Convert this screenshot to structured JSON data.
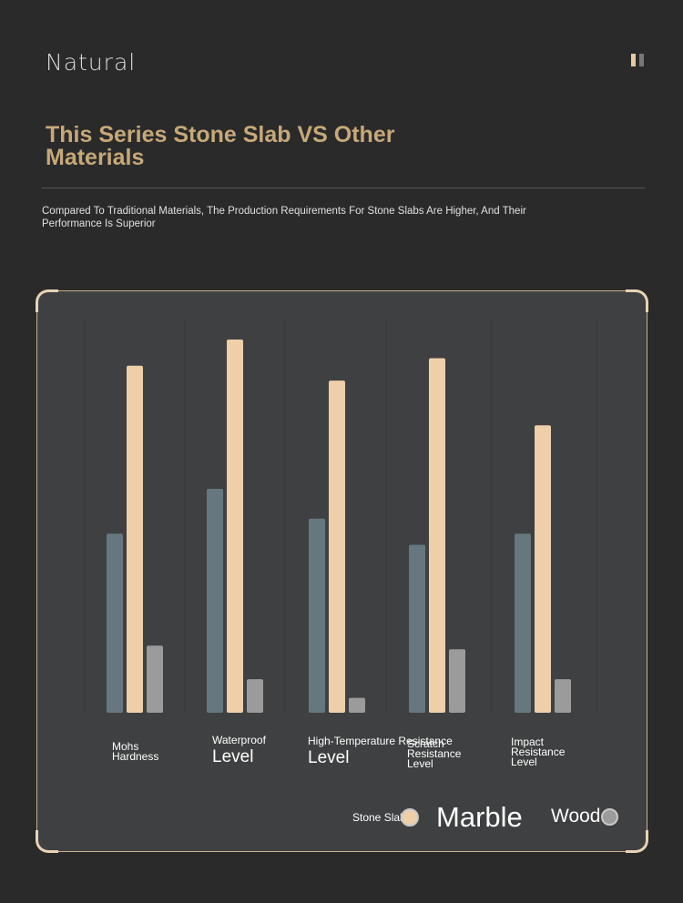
{
  "brand": {
    "name": "Natural"
  },
  "header": {
    "title": "This Series Stone Slab VS Other Materials",
    "subtitle": "Compared To Traditional Materials, The Production Requirements For Stone Slabs Are Higher, And Their Performance Is Superior"
  },
  "colors": {
    "background": "#2a2a2a",
    "panel": "#3f4041",
    "gold_text": "#c7a878",
    "stone_slab": "#667780",
    "marble": "#eecfa9",
    "wood": "#9b9b9b",
    "gridline": "#363738"
  },
  "category_labels": [
    {
      "main": "Mohs Hardness",
      "extra": ""
    },
    {
      "main": "Waterproof",
      "extra": "Level"
    },
    {
      "main": "High-Temperature Resistance",
      "extra": "Level"
    },
    {
      "main": "Scratch Resistance Level",
      "extra": ""
    },
    {
      "main": "Impact Resistance Level",
      "extra": ""
    }
  ],
  "legend": [
    {
      "label": "Stone Slab",
      "color": "#667780"
    },
    {
      "label": "Marble",
      "color": "#eecfa9"
    },
    {
      "label": "Wood",
      "color": "#9b9b9b"
    }
  ],
  "chart_data": {
    "type": "bar",
    "title": "",
    "xlabel": "",
    "ylabel": "",
    "ylim": [
      0,
      100
    ],
    "grid": false,
    "legend_position": "bottom-right",
    "categories": [
      "Mohs Hardness",
      "Waterproof Level",
      "High-Temperature Resistance Level",
      "Scratch Resistance Level",
      "Impact Resistance Level"
    ],
    "series": [
      {
        "name": "Stone Slab",
        "color": "#667780",
        "values": [
          48,
          60,
          52,
          45,
          48
        ]
      },
      {
        "name": "Marble",
        "color": "#eecfa9",
        "values": [
          93,
          100,
          89,
          95,
          77
        ]
      },
      {
        "name": "Wood",
        "color": "#9b9b9b",
        "values": [
          18,
          9,
          4,
          17,
          9
        ]
      }
    ]
  }
}
